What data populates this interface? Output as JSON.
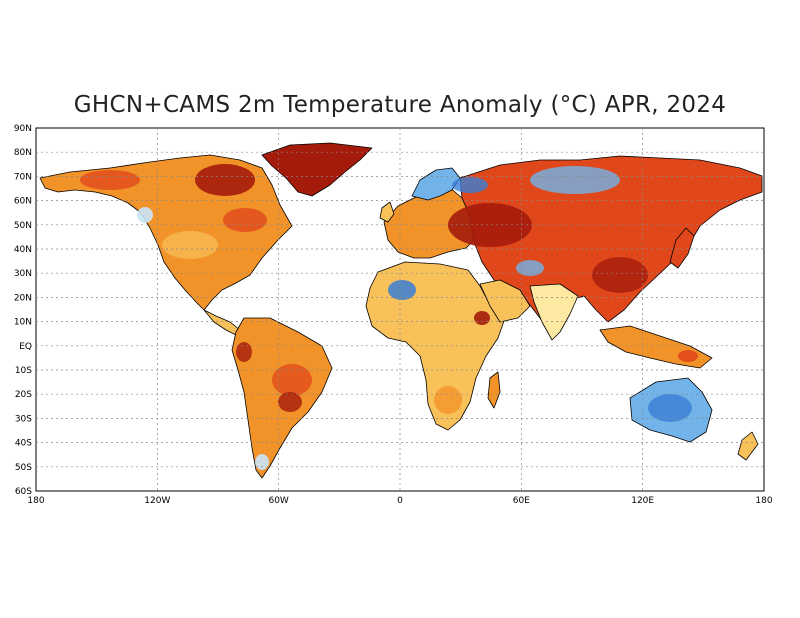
{
  "title": "GHCN+CAMS 2m Temperature Anomaly (°C) APR, 2024",
  "map": {
    "projection": "equirectangular",
    "lon_range": [
      -180,
      180
    ],
    "lat_range": [
      -60,
      90
    ],
    "grid": "dotted",
    "lon_ticks": [
      "180",
      "120W",
      "60W",
      "0",
      "60E",
      "120E",
      "180"
    ],
    "lat_ticks": [
      "90N",
      "80N",
      "70N",
      "60N",
      "50N",
      "40N",
      "30N",
      "20N",
      "10N",
      "EQ",
      "10S",
      "20S",
      "30S",
      "40S",
      "50S",
      "60S"
    ]
  },
  "colors": {
    "strong_warm": "#a51b0b",
    "warm": "#e0481b",
    "moderate_warm": "#f2932a",
    "mild_warm": "#f9c15a",
    "slight_warm": "#fde9a2",
    "slight_cool": "#c9e6f7",
    "cool": "#72b4ea",
    "strong_cool": "#3a7fd6"
  }
}
